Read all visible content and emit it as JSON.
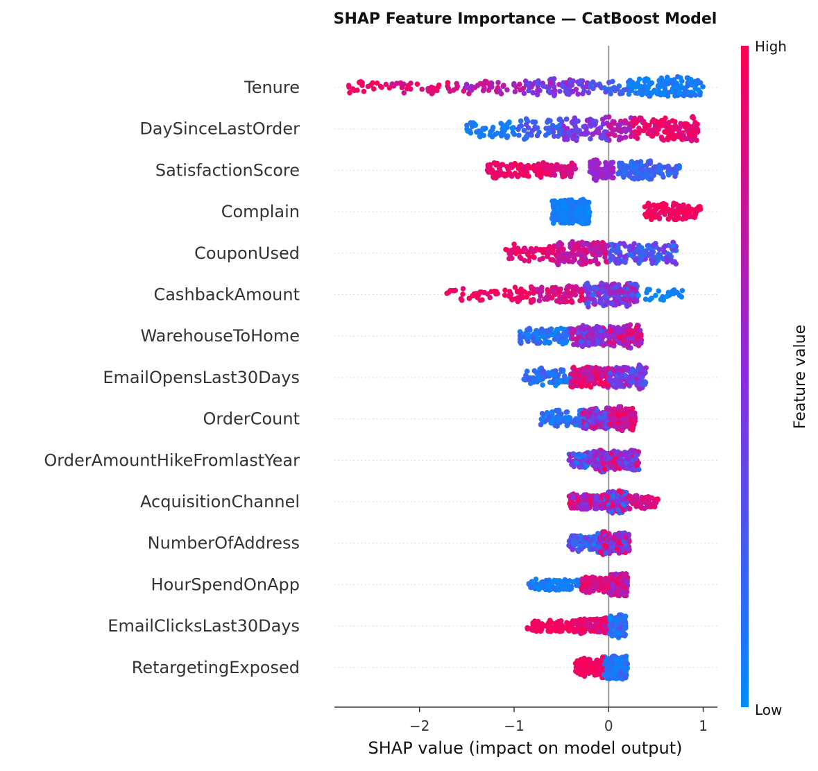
{
  "chart_data": {
    "type": "scatter",
    "subtype": "shap-beeswarm",
    "title": "SHAP Feature Importance — CatBoost Model",
    "xlabel": "SHAP value (impact on model output)",
    "ylabel": "",
    "xlim": [
      -2.9,
      1.15
    ],
    "xticks": [
      {
        "value": -2,
        "label": "−2"
      },
      {
        "value": -1,
        "label": "−1"
      },
      {
        "value": 0,
        "label": "0"
      },
      {
        "value": 1,
        "label": "1"
      }
    ],
    "colorbar": {
      "label": "Feature value",
      "high_label": "High",
      "low_label": "Low",
      "high_color": "#ff0052",
      "mid_color": "#8a2be2",
      "low_color": "#008bfb"
    },
    "zero_line_color": "#999999",
    "point_size": 360,
    "features": [
      {
        "name": "Tenure",
        "spread": 0.26,
        "clusters": [
          {
            "min": -2.75,
            "max": -2.3,
            "w": 0.7,
            "cmin": 0.9,
            "cmax": 1.0
          },
          {
            "min": -2.3,
            "max": -1.55,
            "w": 1.3,
            "cmin": 0.75,
            "cmax": 1.0
          },
          {
            "min": -1.55,
            "max": -0.9,
            "w": 1.3,
            "cmin": 0.55,
            "cmax": 0.85
          },
          {
            "min": -0.9,
            "max": -0.2,
            "w": 2.6,
            "cmin": 0.3,
            "cmax": 0.65
          },
          {
            "min": -0.2,
            "max": 0.2,
            "w": 1.2,
            "cmin": 0.1,
            "cmax": 0.35
          },
          {
            "min": 0.2,
            "max": 1.0,
            "w": 4.5,
            "cmin": 0.0,
            "cmax": 0.15
          }
        ]
      },
      {
        "name": "DaySinceLastOrder",
        "spread": 0.3,
        "clusters": [
          {
            "min": -1.5,
            "max": -1.0,
            "w": 1.2,
            "cmin": 0.0,
            "cmax": 0.15
          },
          {
            "min": -1.0,
            "max": -0.5,
            "w": 1.8,
            "cmin": 0.1,
            "cmax": 0.35
          },
          {
            "min": -0.5,
            "max": 0.0,
            "w": 2.2,
            "cmin": 0.3,
            "cmax": 0.6
          },
          {
            "min": 0.0,
            "max": 0.25,
            "w": 1.2,
            "cmin": 0.55,
            "cmax": 0.8
          },
          {
            "min": 0.25,
            "max": 0.95,
            "w": 3.5,
            "cmin": 0.8,
            "cmax": 1.0
          }
        ]
      },
      {
        "name": "SatisfactionScore",
        "spread": 0.26,
        "clusters": [
          {
            "min": -1.3,
            "max": -0.65,
            "w": 2.2,
            "cmin": 0.85,
            "cmax": 1.0
          },
          {
            "min": -0.65,
            "max": -0.35,
            "w": 1.2,
            "cmin": 0.75,
            "cmax": 0.9
          },
          {
            "min": -0.2,
            "max": 0.05,
            "w": 1.6,
            "cmin": 0.5,
            "cmax": 0.65
          },
          {
            "min": 0.1,
            "max": 0.75,
            "w": 2.8,
            "cmin": 0.1,
            "cmax": 0.3
          }
        ]
      },
      {
        "name": "Complain",
        "spread": 0.3,
        "clusters": [
          {
            "min": -0.6,
            "max": -0.2,
            "w": 2.6,
            "cmin": 0.0,
            "cmax": 0.12
          },
          {
            "min": 0.38,
            "max": 0.98,
            "w": 1.4,
            "cmin": 0.9,
            "cmax": 1.0
          }
        ]
      },
      {
        "name": "CouponUsed",
        "spread": 0.3,
        "clusters": [
          {
            "min": -1.1,
            "max": -0.55,
            "w": 1.0,
            "cmin": 0.8,
            "cmax": 1.0
          },
          {
            "min": -0.55,
            "max": 0.0,
            "w": 2.2,
            "cmin": 0.6,
            "cmax": 0.9
          },
          {
            "min": 0.0,
            "max": 0.72,
            "w": 2.6,
            "cmin": 0.1,
            "cmax": 0.5
          }
        ]
      },
      {
        "name": "CashbackAmount",
        "spread": 0.3,
        "clusters": [
          {
            "min": -1.72,
            "max": -0.8,
            "w": 1.0,
            "cmin": 0.85,
            "cmax": 1.0
          },
          {
            "min": -0.8,
            "max": -0.25,
            "w": 1.2,
            "cmin": 0.7,
            "cmax": 0.95
          },
          {
            "min": -0.25,
            "max": 0.3,
            "w": 3.0,
            "cmin": 0.15,
            "cmax": 0.75
          },
          {
            "min": 0.3,
            "max": 0.78,
            "w": 0.4,
            "cmin": 0.0,
            "cmax": 0.1
          }
        ]
      },
      {
        "name": "WarehouseToHome",
        "spread": 0.3,
        "clusters": [
          {
            "min": -0.95,
            "max": -0.4,
            "w": 1.0,
            "cmin": 0.0,
            "cmax": 0.25
          },
          {
            "min": -0.4,
            "max": 0.0,
            "w": 1.6,
            "cmin": 0.2,
            "cmax": 0.8
          },
          {
            "min": 0.0,
            "max": 0.35,
            "w": 1.8,
            "cmin": 0.4,
            "cmax": 1.0
          }
        ]
      },
      {
        "name": "EmailOpensLast30Days",
        "spread": 0.3,
        "clusters": [
          {
            "min": -0.9,
            "max": -0.4,
            "w": 1.0,
            "cmin": 0.0,
            "cmax": 0.3
          },
          {
            "min": -0.4,
            "max": 0.0,
            "w": 1.6,
            "cmin": 0.6,
            "cmax": 1.0
          },
          {
            "min": 0.0,
            "max": 0.4,
            "w": 2.0,
            "cmin": 0.2,
            "cmax": 0.7
          }
        ]
      },
      {
        "name": "OrderCount",
        "spread": 0.3,
        "clusters": [
          {
            "min": -0.72,
            "max": -0.3,
            "w": 0.8,
            "cmin": 0.0,
            "cmax": 0.3
          },
          {
            "min": -0.3,
            "max": 0.0,
            "w": 1.6,
            "cmin": 0.2,
            "cmax": 0.9
          },
          {
            "min": 0.0,
            "max": 0.28,
            "w": 1.8,
            "cmin": 0.6,
            "cmax": 1.0
          }
        ]
      },
      {
        "name": "OrderAmountHikeFromlastYear",
        "spread": 0.28,
        "clusters": [
          {
            "min": -0.42,
            "max": -0.1,
            "w": 1.0,
            "cmin": 0.0,
            "cmax": 0.8
          },
          {
            "min": -0.1,
            "max": 0.32,
            "w": 2.4,
            "cmin": 0.2,
            "cmax": 1.0
          }
        ]
      },
      {
        "name": "AcquisitionChannel",
        "spread": 0.28,
        "clusters": [
          {
            "min": -0.42,
            "max": -0.05,
            "w": 1.4,
            "cmin": 0.3,
            "cmax": 1.0
          },
          {
            "min": -0.05,
            "max": 0.2,
            "w": 2.0,
            "cmin": 0.0,
            "cmax": 1.0
          },
          {
            "min": 0.2,
            "max": 0.52,
            "w": 0.8,
            "cmin": 0.7,
            "cmax": 1.0
          }
        ]
      },
      {
        "name": "NumberOfAddress",
        "spread": 0.28,
        "clusters": [
          {
            "min": -0.42,
            "max": -0.1,
            "w": 1.0,
            "cmin": 0.0,
            "cmax": 0.5
          },
          {
            "min": -0.1,
            "max": 0.22,
            "w": 2.4,
            "cmin": 0.2,
            "cmax": 1.0
          }
        ]
      },
      {
        "name": "HourSpendOnApp",
        "spread": 0.28,
        "clusters": [
          {
            "min": -0.85,
            "max": -0.3,
            "w": 0.8,
            "cmin": 0.0,
            "cmax": 0.15
          },
          {
            "min": -0.3,
            "max": 0.0,
            "w": 1.0,
            "cmin": 0.7,
            "cmax": 1.0
          },
          {
            "min": 0.0,
            "max": 0.2,
            "w": 1.8,
            "cmin": 0.5,
            "cmax": 1.0
          }
        ]
      },
      {
        "name": "EmailClicksLast30Days",
        "spread": 0.28,
        "clusters": [
          {
            "min": -0.86,
            "max": -0.35,
            "w": 0.8,
            "cmin": 0.9,
            "cmax": 1.0
          },
          {
            "min": -0.35,
            "max": 0.0,
            "w": 1.4,
            "cmin": 0.75,
            "cmax": 1.0
          },
          {
            "min": 0.0,
            "max": 0.18,
            "w": 2.0,
            "cmin": 0.0,
            "cmax": 0.35
          }
        ]
      },
      {
        "name": "RetargetingExposed",
        "spread": 0.28,
        "clusters": [
          {
            "min": -0.35,
            "max": -0.05,
            "w": 1.4,
            "cmin": 0.9,
            "cmax": 1.0
          },
          {
            "min": -0.05,
            "max": 0.2,
            "w": 2.2,
            "cmin": 0.0,
            "cmax": 0.25
          }
        ]
      }
    ]
  }
}
